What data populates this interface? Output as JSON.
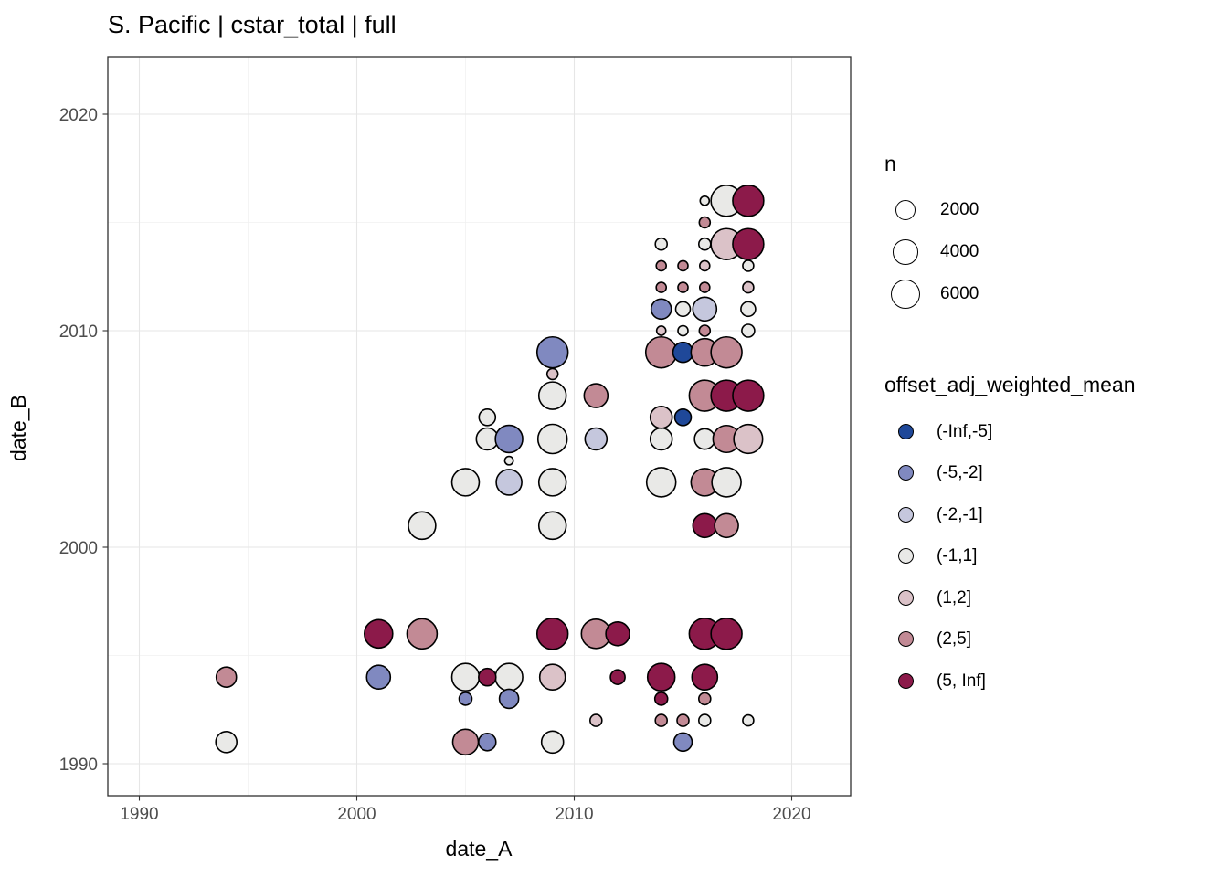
{
  "title": "S. Pacific | cstar_total | full",
  "chart_data": {
    "type": "scatter",
    "title": "S. Pacific | cstar_total | full",
    "xlabel": "date_A",
    "ylabel": "date_B",
    "x_ticks": [
      1990,
      2000,
      2010,
      2020
    ],
    "y_ticks": [
      1990,
      2000,
      2010,
      2020
    ],
    "x_minor": [
      1995,
      2005,
      2015
    ],
    "y_minor": [
      1995,
      2005,
      2015
    ],
    "xlim": [
      1988.5,
      2022.7
    ],
    "ylim": [
      1988.5,
      2022.7
    ],
    "grid": true,
    "size_legend": {
      "title": "n",
      "breaks": [
        2000,
        4000,
        6000
      ]
    },
    "color_legend": {
      "title": "offset_adj_weighted_mean",
      "bins": [
        {
          "label": "(-Inf,-5]",
          "color": "#1f4899"
        },
        {
          "label": "(-5,-2]",
          "color": "#8089c0"
        },
        {
          "label": "(-2,-1]",
          "color": "#c5c7dd"
        },
        {
          "label": "(-1,1]",
          "color": "#e9e9e7"
        },
        {
          "label": "(1,2]",
          "color": "#dbc2c8"
        },
        {
          "label": "(2,5]",
          "color": "#c28a95"
        },
        {
          "label": "(5, Inf]",
          "color": "#8c1a4a"
        }
      ]
    },
    "points": [
      {
        "a": 1994,
        "b": 1991,
        "n": 2300,
        "bin": "(-1,1]"
      },
      {
        "a": 2005,
        "b": 1991,
        "n": 4150,
        "bin": "(2,5]"
      },
      {
        "a": 2006,
        "b": 1991,
        "n": 1200,
        "bin": "(-5,-2]"
      },
      {
        "a": 2009,
        "b": 1991,
        "n": 2630,
        "bin": "(-1,1]"
      },
      {
        "a": 2015,
        "b": 1991,
        "n": 1450,
        "bin": "(-5,-2]"
      },
      {
        "a": 2011,
        "b": 1992,
        "n": 230,
        "bin": "(1,2]"
      },
      {
        "a": 2014,
        "b": 1992,
        "n": 230,
        "bin": "(2,5]"
      },
      {
        "a": 2015,
        "b": 1992,
        "n": 230,
        "bin": "(2,5]"
      },
      {
        "a": 2016,
        "b": 1992,
        "n": 230,
        "bin": "(-1,1]"
      },
      {
        "a": 2018,
        "b": 1992,
        "n": 140,
        "bin": "(-1,1]"
      },
      {
        "a": 1994,
        "b": 1994,
        "n": 2000,
        "bin": "(2,5]"
      },
      {
        "a": 2001,
        "b": 1994,
        "n": 3340,
        "bin": "(-5,-2]"
      },
      {
        "a": 2005,
        "b": 1994,
        "n": 5000,
        "bin": "(-1,1]"
      },
      {
        "a": 2007,
        "b": 1994,
        "n": 5000,
        "bin": "(-1,1]"
      },
      {
        "a": 2006,
        "b": 1994,
        "n": 1200,
        "bin": "(5, Inf]"
      },
      {
        "a": 2009,
        "b": 1994,
        "n": 4150,
        "bin": "(1,2]"
      },
      {
        "a": 2012,
        "b": 1994,
        "n": 625,
        "bin": "(5, Inf]"
      },
      {
        "a": 2014,
        "b": 1994,
        "n": 5000,
        "bin": "(5, Inf]"
      },
      {
        "a": 2016,
        "b": 1994,
        "n": 4150,
        "bin": "(5, Inf]"
      },
      {
        "a": 2005,
        "b": 1993,
        "n": 340,
        "bin": "(-5,-2]"
      },
      {
        "a": 2007,
        "b": 1993,
        "n": 1720,
        "bin": "(-5,-2]"
      },
      {
        "a": 2014,
        "b": 1993,
        "n": 340,
        "bin": "(5, Inf]"
      },
      {
        "a": 2016,
        "b": 1993,
        "n": 230,
        "bin": "(2,5]"
      },
      {
        "a": 2001,
        "b": 1996,
        "n": 5500,
        "bin": "(5, Inf]"
      },
      {
        "a": 2003,
        "b": 1996,
        "n": 6500,
        "bin": "(2,5]"
      },
      {
        "a": 2009,
        "b": 1996,
        "n": 7000,
        "bin": "(5, Inf]"
      },
      {
        "a": 2011,
        "b": 1996,
        "n": 6000,
        "bin": "(2,5]"
      },
      {
        "a": 2012,
        "b": 1996,
        "n": 3340,
        "bin": "(5, Inf]"
      },
      {
        "a": 2016,
        "b": 1996,
        "n": 7000,
        "bin": "(5, Inf]"
      },
      {
        "a": 2017,
        "b": 1996,
        "n": 7000,
        "bin": "(5, Inf]"
      },
      {
        "a": 2003,
        "b": 2001,
        "n": 5000,
        "bin": "(-1,1]"
      },
      {
        "a": 2009,
        "b": 2001,
        "n": 5000,
        "bin": "(-1,1]"
      },
      {
        "a": 2016,
        "b": 2001,
        "n": 3340,
        "bin": "(5, Inf]"
      },
      {
        "a": 2017,
        "b": 2001,
        "n": 3340,
        "bin": "(2,5]"
      },
      {
        "a": 2005,
        "b": 2003,
        "n": 5000,
        "bin": "(-1,1]"
      },
      {
        "a": 2007,
        "b": 2003,
        "n": 4150,
        "bin": "(-2,-1]"
      },
      {
        "a": 2009,
        "b": 2003,
        "n": 5000,
        "bin": "(-1,1]"
      },
      {
        "a": 2014,
        "b": 2003,
        "n": 6000,
        "bin": "(-1,1]"
      },
      {
        "a": 2016,
        "b": 2003,
        "n": 5000,
        "bin": "(2,5]"
      },
      {
        "a": 2017,
        "b": 2003,
        "n": 6000,
        "bin": "(-1,1]"
      },
      {
        "a": 2006,
        "b": 2005,
        "n": 2630,
        "bin": "(-1,1]"
      },
      {
        "a": 2007,
        "b": 2005,
        "n": 5000,
        "bin": "(-5,-2]"
      },
      {
        "a": 2009,
        "b": 2005,
        "n": 6000,
        "bin": "(-1,1]"
      },
      {
        "a": 2011,
        "b": 2005,
        "n": 2630,
        "bin": "(-2,-1]"
      },
      {
        "a": 2014,
        "b": 2005,
        "n": 2630,
        "bin": "(-1,1]"
      },
      {
        "a": 2016,
        "b": 2005,
        "n": 2100,
        "bin": "(-1,1]"
      },
      {
        "a": 2017,
        "b": 2005,
        "n": 4800,
        "bin": "(2,5]"
      },
      {
        "a": 2018,
        "b": 2005,
        "n": 5800,
        "bin": "(1,2]"
      },
      {
        "a": 2007,
        "b": 2004,
        "n": 10,
        "bin": "(-1,1]"
      },
      {
        "a": 2006,
        "b": 2006,
        "n": 1000,
        "bin": "(-1,1]"
      },
      {
        "a": 2014,
        "b": 2006,
        "n": 2630,
        "bin": "(1,2]"
      },
      {
        "a": 2015,
        "b": 2006,
        "n": 1000,
        "bin": "(-Inf,-5]"
      },
      {
        "a": 2009,
        "b": 2007,
        "n": 5000,
        "bin": "(-1,1]"
      },
      {
        "a": 2011,
        "b": 2007,
        "n": 3340,
        "bin": "(2,5]"
      },
      {
        "a": 2016,
        "b": 2007,
        "n": 7000,
        "bin": "(2,5]"
      },
      {
        "a": 2017,
        "b": 2007,
        "n": 7000,
        "bin": "(5, Inf]"
      },
      {
        "a": 2018,
        "b": 2007,
        "n": 7000,
        "bin": "(5, Inf]"
      },
      {
        "a": 2009,
        "b": 2009,
        "n": 7000,
        "bin": "(-5,-2]"
      },
      {
        "a": 2009,
        "b": 2008,
        "n": 140,
        "bin": "(1,2]"
      },
      {
        "a": 2014,
        "b": 2009,
        "n": 7000,
        "bin": "(2,5]"
      },
      {
        "a": 2015,
        "b": 2009,
        "n": 2000,
        "bin": "(-Inf,-5]"
      },
      {
        "a": 2016,
        "b": 2009,
        "n": 5000,
        "bin": "(2,5]"
      },
      {
        "a": 2017,
        "b": 2009,
        "n": 7000,
        "bin": "(2,5]"
      },
      {
        "a": 2014,
        "b": 2010,
        "n": 30,
        "bin": "(1,2]"
      },
      {
        "a": 2015,
        "b": 2010,
        "n": 75,
        "bin": "(-1,1]"
      },
      {
        "a": 2016,
        "b": 2010,
        "n": 140,
        "bin": "(2,5]"
      },
      {
        "a": 2018,
        "b": 2010,
        "n": 340,
        "bin": "(-1,1]"
      },
      {
        "a": 2014,
        "b": 2011,
        "n": 2000,
        "bin": "(-5,-2]"
      },
      {
        "a": 2015,
        "b": 2011,
        "n": 625,
        "bin": "(-1,1]"
      },
      {
        "a": 2016,
        "b": 2011,
        "n": 3340,
        "bin": "(-2,-1]"
      },
      {
        "a": 2018,
        "b": 2011,
        "n": 625,
        "bin": "(-1,1]"
      },
      {
        "a": 2014,
        "b": 2012,
        "n": 75,
        "bin": "(2,5]"
      },
      {
        "a": 2015,
        "b": 2012,
        "n": 75,
        "bin": "(2,5]"
      },
      {
        "a": 2016,
        "b": 2012,
        "n": 75,
        "bin": "(2,5]"
      },
      {
        "a": 2018,
        "b": 2012,
        "n": 140,
        "bin": "(1,2]"
      },
      {
        "a": 2014,
        "b": 2013,
        "n": 75,
        "bin": "(2,5]"
      },
      {
        "a": 2015,
        "b": 2013,
        "n": 75,
        "bin": "(2,5]"
      },
      {
        "a": 2016,
        "b": 2013,
        "n": 75,
        "bin": "(1,2]"
      },
      {
        "a": 2018,
        "b": 2013,
        "n": 140,
        "bin": "(-1,1]"
      },
      {
        "a": 2017,
        "b": 2014,
        "n": 7000,
        "bin": "(1,2]"
      },
      {
        "a": 2018,
        "b": 2014,
        "n": 7000,
        "bin": "(5, Inf]"
      },
      {
        "a": 2014,
        "b": 2014,
        "n": 230,
        "bin": "(-1,1]"
      },
      {
        "a": 2016,
        "b": 2014,
        "n": 230,
        "bin": "(-1,1]"
      },
      {
        "a": 2016,
        "b": 2015,
        "n": 140,
        "bin": "(2,5]"
      },
      {
        "a": 2017,
        "b": 2016,
        "n": 7000,
        "bin": "(-1,1]"
      },
      {
        "a": 2018,
        "b": 2016,
        "n": 7000,
        "bin": "(5, Inf]"
      },
      {
        "a": 2016,
        "b": 2016,
        "n": 30,
        "bin": "(-1,1]"
      }
    ]
  }
}
